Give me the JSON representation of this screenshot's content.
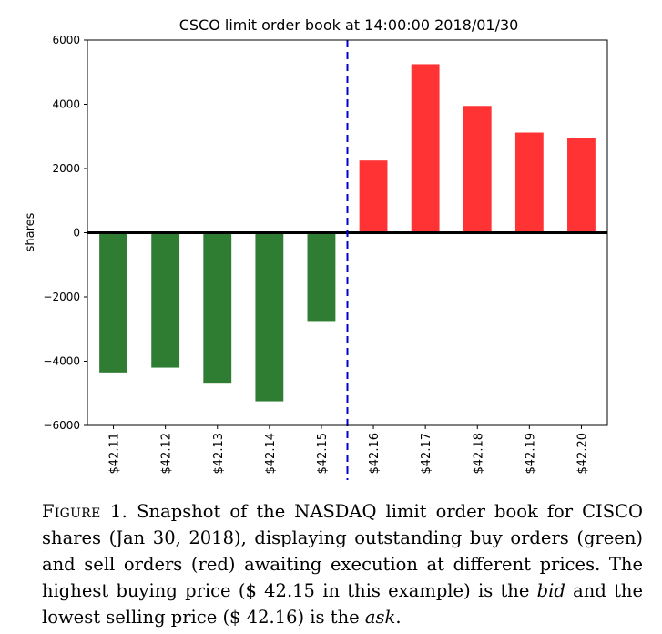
{
  "chart_data": {
    "type": "bar",
    "title": "CSCO limit order book at 14:00:00 2018/01/30",
    "ylabel": "shares",
    "xlabel": "",
    "categories": [
      "$42.11",
      "$42.12",
      "$42.13",
      "$42.14",
      "$42.15",
      "$42.16",
      "$42.17",
      "$42.18",
      "$42.19",
      "$42.20"
    ],
    "values": [
      -4350,
      -4200,
      -4700,
      -5250,
      -2750,
      2250,
      5250,
      3950,
      3120,
      2960
    ],
    "bar_colors": [
      "#2e7d32",
      "#2e7d32",
      "#2e7d32",
      "#2e7d32",
      "#2e7d32",
      "#ff3333",
      "#ff3333",
      "#ff3333",
      "#ff3333",
      "#ff3333"
    ],
    "ylim": [
      -6000,
      6000
    ],
    "yticks": [
      -6000,
      -4000,
      -2000,
      0,
      2000,
      4000,
      6000
    ],
    "ytick_labels": [
      "−6000",
      "−4000",
      "−2000",
      "0",
      "2000",
      "4000",
      "6000"
    ],
    "divider_color": "#0000cc",
    "zero_line_color": "#000000",
    "grid": false
  },
  "caption": {
    "label": "Figure 1.",
    "text_1": "Snapshot of the NASDAQ limit order book for CISCO shares (Jan 30, 2018), displaying outstanding buy orders (green) and sell orders (red) awaiting execution at different prices. The highest buying price ($ 42.15 in this example) is the ",
    "bid": "bid",
    "text_2": " and the lowest selling price ($ 42.16) is the ",
    "ask": "ask",
    "text_3": "."
  }
}
